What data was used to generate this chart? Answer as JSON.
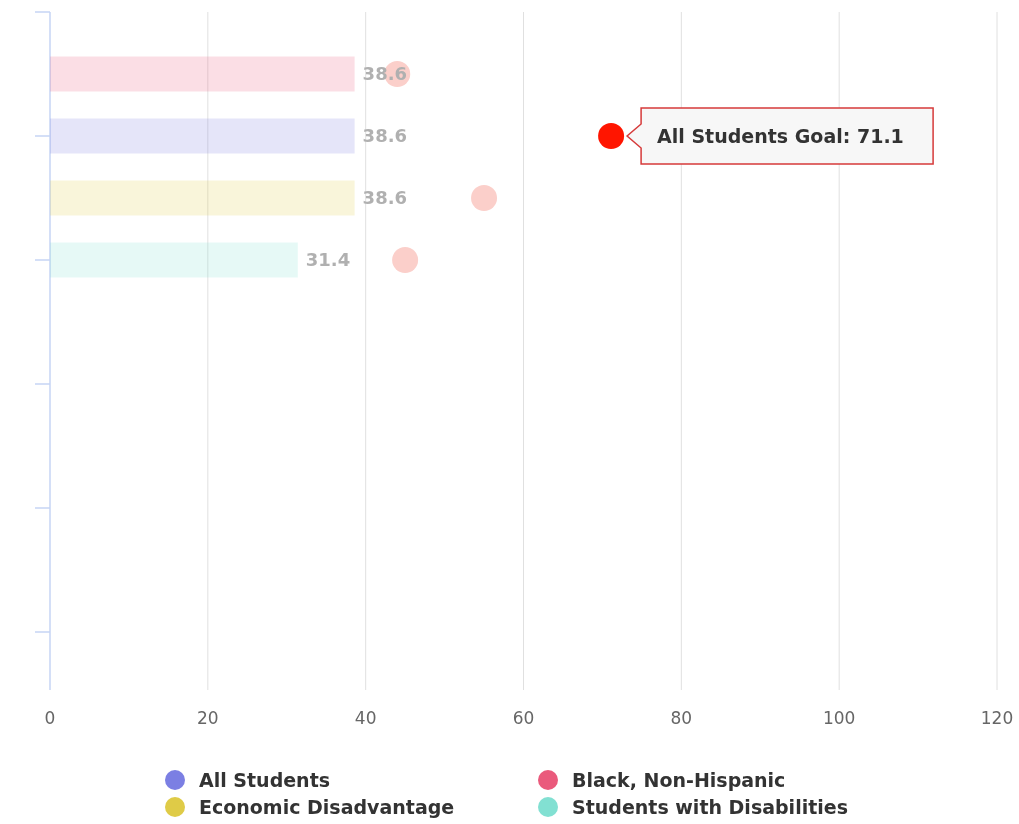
{
  "chart_data": {
    "type": "bar",
    "orientation": "horizontal",
    "categories": [
      null,
      null,
      null,
      null,
      null,
      null,
      null,
      null,
      null,
      null
    ],
    "xlim": [
      0,
      120
    ],
    "xticks": [
      0,
      20,
      40,
      60,
      80,
      100,
      120
    ],
    "grid": "x",
    "legend": "bottom",
    "series": [
      {
        "name": "All Students",
        "color": "#7b7fe3",
        "values": [
          null,
          38.6,
          null,
          null,
          null,
          null,
          null,
          null,
          null,
          null
        ],
        "value_labels": [
          null,
          "38.6",
          null,
          null,
          null,
          null,
          null,
          null,
          null,
          null
        ]
      },
      {
        "name": "Black, Non-Hispanic",
        "color": "#ea5a7c",
        "values": [
          38.6,
          null,
          null,
          null,
          null,
          null,
          null,
          null,
          null,
          null
        ],
        "value_labels": [
          "38.6",
          null,
          null,
          null,
          null,
          null,
          null,
          null,
          null,
          null
        ]
      },
      {
        "name": "Economic Disadvantage",
        "color": "#dfcb47",
        "values": [
          null,
          null,
          38.6,
          null,
          null,
          null,
          null,
          null,
          null,
          null
        ],
        "value_labels": [
          null,
          null,
          "38.6",
          null,
          null,
          null,
          null,
          null,
          null,
          null
        ]
      },
      {
        "name": "Students with Disabilities",
        "color": "#82e0d2",
        "values": [
          null,
          null,
          null,
          31.4,
          null,
          null,
          null,
          null,
          null,
          null
        ],
        "value_labels": [
          null,
          null,
          null,
          "31.4",
          null,
          null,
          null,
          null,
          null,
          null
        ]
      },
      {
        "type": "scatter",
        "marker": "circle",
        "colors": [
          "#fbcfca",
          "#ff1500",
          "#fbcfca",
          "#fbcfca",
          null,
          null,
          null,
          null,
          null,
          null
        ],
        "values": [
          44,
          71.1,
          55,
          45,
          null,
          null,
          null,
          null,
          null,
          null
        ]
      }
    ],
    "annotations": [
      {
        "text": "All Students Goal: 71.1",
        "x": 71.1
      }
    ]
  }
}
